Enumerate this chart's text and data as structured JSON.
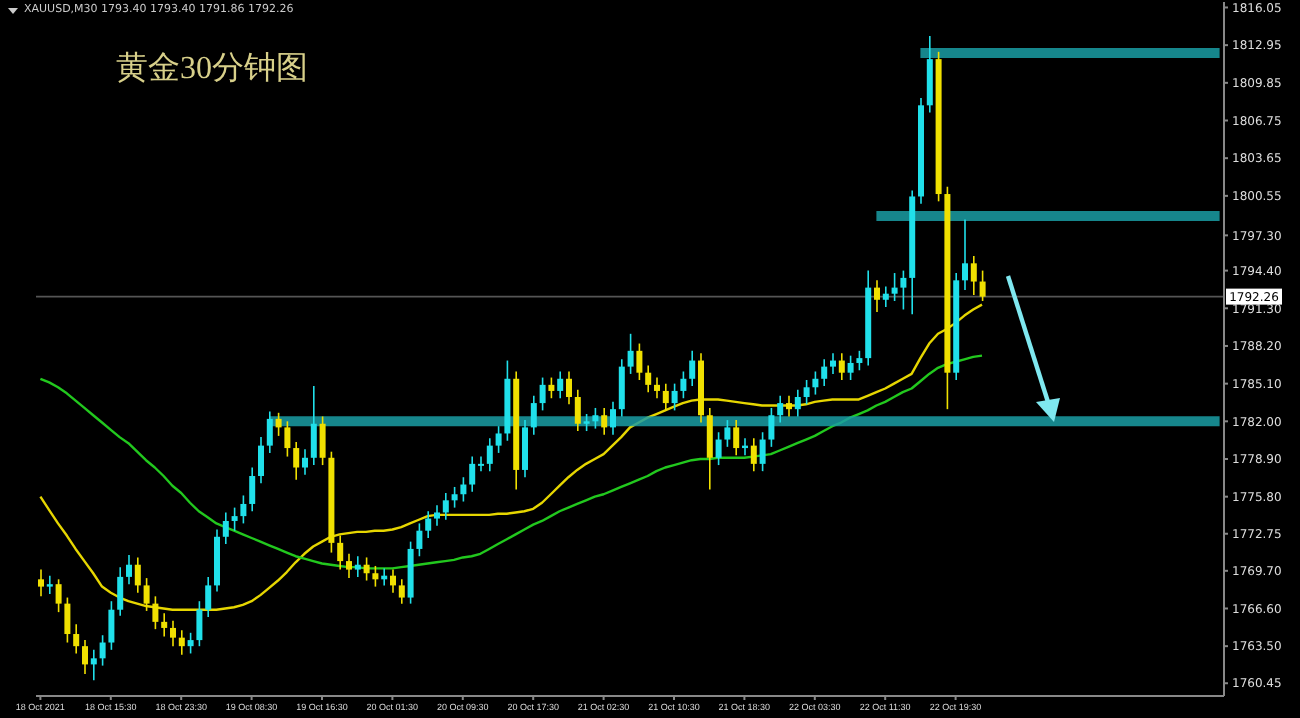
{
  "chart_data": {
    "type": "candlestick",
    "title": "黄金30分钟图",
    "annotations": [
      "XAUUSD,M30 1793.40 1793.40 1791.86 1792.26"
    ],
    "categories": [
      "18 Oct 2021",
      null,
      null,
      null,
      null,
      null,
      null,
      null,
      "18 Oct 15:30",
      null,
      null,
      null,
      null,
      null,
      null,
      null,
      "18 Oct 23:30",
      null,
      null,
      null,
      null,
      null,
      null,
      null,
      "19 Oct 08:30",
      null,
      null,
      null,
      null,
      null,
      null,
      null,
      "19 Oct 16:30",
      null,
      null,
      null,
      null,
      null,
      null,
      null,
      "20 Oct 01:30",
      null,
      null,
      null,
      null,
      null,
      null,
      null,
      "20 Oct 09:30",
      null,
      null,
      null,
      null,
      null,
      null,
      null,
      "20 Oct 17:30",
      null,
      null,
      null,
      null,
      null,
      null,
      null,
      "21 Oct 02:30",
      null,
      null,
      null,
      null,
      null,
      null,
      null,
      "21 Oct 10:30",
      null,
      null,
      null,
      null,
      null,
      null,
      null,
      "21 Oct 18:30",
      null,
      null,
      null,
      null,
      null,
      null,
      null,
      "22 Oct 03:30",
      null,
      null,
      null,
      null,
      null,
      null,
      null,
      "22 Oct 11:30",
      null,
      null,
      null,
      null,
      null,
      null,
      null,
      "22 Oct 19:30",
      null,
      null,
      null,
      null,
      null,
      null,
      null,
      null,
      null,
      null,
      null,
      null,
      null,
      null,
      null,
      null,
      null,
      null,
      null,
      null,
      null,
      null,
      null,
      null,
      null,
      null,
      null,
      null,
      null,
      null
    ],
    "ohlc": [
      [
        1769.0,
        1769.8,
        1767.6,
        1768.4
      ],
      [
        1768.4,
        1769.3,
        1767.8,
        1768.6
      ],
      [
        1768.6,
        1769.0,
        1766.3,
        1767.0
      ],
      [
        1767.0,
        1767.5,
        1763.8,
        1764.5
      ],
      [
        1764.5,
        1765.3,
        1762.9,
        1763.5
      ],
      [
        1763.5,
        1764.0,
        1761.2,
        1762.0
      ],
      [
        1762.0,
        1763.2,
        1760.7,
        1762.5
      ],
      [
        1762.5,
        1764.4,
        1761.9,
        1763.8
      ],
      [
        1763.8,
        1767.2,
        1763.2,
        1766.5
      ],
      [
        1766.5,
        1770.0,
        1766.0,
        1769.2
      ],
      [
        1769.2,
        1771.0,
        1768.6,
        1770.2
      ],
      [
        1770.2,
        1770.8,
        1767.9,
        1768.5
      ],
      [
        1768.5,
        1769.1,
        1766.4,
        1767.0
      ],
      [
        1767.0,
        1767.6,
        1764.9,
        1765.5
      ],
      [
        1765.5,
        1766.2,
        1764.3,
        1765.0
      ],
      [
        1765.0,
        1765.6,
        1763.5,
        1764.2
      ],
      [
        1764.2,
        1764.8,
        1762.8,
        1763.5
      ],
      [
        1763.5,
        1764.6,
        1762.9,
        1764.0
      ],
      [
        1764.0,
        1767.2,
        1763.5,
        1766.5
      ],
      [
        1766.5,
        1769.2,
        1765.9,
        1768.5
      ],
      [
        1768.5,
        1773.1,
        1768.0,
        1772.5
      ],
      [
        1772.5,
        1774.5,
        1771.9,
        1773.8
      ],
      [
        1773.8,
        1774.9,
        1773.0,
        1774.2
      ],
      [
        1774.2,
        1775.9,
        1773.6,
        1775.2
      ],
      [
        1775.2,
        1778.2,
        1774.6,
        1777.5
      ],
      [
        1777.5,
        1780.7,
        1776.9,
        1780.0
      ],
      [
        1780.0,
        1782.8,
        1779.4,
        1782.2
      ],
      [
        1782.2,
        1782.7,
        1780.8,
        1781.5
      ],
      [
        1781.5,
        1782.0,
        1779.1,
        1779.8
      ],
      [
        1779.8,
        1780.3,
        1777.2,
        1778.2
      ],
      [
        1778.2,
        1779.7,
        1777.6,
        1779.0
      ],
      [
        1779.0,
        1784.9,
        1778.4,
        1781.8
      ],
      [
        1781.8,
        1782.4,
        1778.4,
        1779.0
      ],
      [
        1779.0,
        1779.5,
        1771.2,
        1772.0
      ],
      [
        1772.0,
        1772.6,
        1769.8,
        1770.5
      ],
      [
        1770.5,
        1771.1,
        1769.1,
        1769.8
      ],
      [
        1769.8,
        1770.9,
        1769.2,
        1770.2
      ],
      [
        1770.2,
        1770.8,
        1768.9,
        1769.5
      ],
      [
        1769.5,
        1770.1,
        1768.4,
        1769.0
      ],
      [
        1769.0,
        1769.9,
        1768.5,
        1769.3
      ],
      [
        1769.3,
        1769.8,
        1767.9,
        1768.5
      ],
      [
        1768.5,
        1769.0,
        1767.0,
        1767.5
      ],
      [
        1767.5,
        1772.1,
        1767.0,
        1771.5
      ],
      [
        1771.5,
        1773.6,
        1770.9,
        1773.0
      ],
      [
        1773.0,
        1774.6,
        1772.4,
        1774.0
      ],
      [
        1774.0,
        1775.1,
        1773.4,
        1774.5
      ],
      [
        1774.5,
        1776.1,
        1773.9,
        1775.5
      ],
      [
        1775.5,
        1776.6,
        1774.9,
        1776.0
      ],
      [
        1776.0,
        1777.4,
        1775.4,
        1776.8
      ],
      [
        1776.8,
        1779.1,
        1776.2,
        1778.5
      ],
      [
        1778.5,
        1779.1,
        1777.9,
        1778.5
      ],
      [
        1778.5,
        1780.6,
        1777.9,
        1780.0
      ],
      [
        1780.0,
        1781.6,
        1779.4,
        1781.0
      ],
      [
        1781.0,
        1787.0,
        1780.4,
        1785.5
      ],
      [
        1785.5,
        1786.1,
        1776.4,
        1778.0
      ],
      [
        1778.0,
        1782.1,
        1777.4,
        1781.5
      ],
      [
        1781.5,
        1784.1,
        1780.9,
        1783.5
      ],
      [
        1783.5,
        1785.6,
        1782.9,
        1785.0
      ],
      [
        1785.0,
        1785.6,
        1783.9,
        1784.5
      ],
      [
        1784.5,
        1786.1,
        1783.9,
        1785.5
      ],
      [
        1785.5,
        1786.1,
        1783.4,
        1784.0
      ],
      [
        1784.0,
        1784.6,
        1781.2,
        1781.8
      ],
      [
        1781.8,
        1782.6,
        1781.2,
        1782.0
      ],
      [
        1782.0,
        1783.1,
        1781.4,
        1782.5
      ],
      [
        1782.5,
        1783.1,
        1780.9,
        1781.5
      ],
      [
        1781.5,
        1783.6,
        1780.9,
        1783.0
      ],
      [
        1783.0,
        1787.1,
        1782.4,
        1786.5
      ],
      [
        1786.5,
        1789.2,
        1785.9,
        1787.8
      ],
      [
        1787.8,
        1788.4,
        1785.4,
        1786.0
      ],
      [
        1786.0,
        1786.6,
        1784.4,
        1785.0
      ],
      [
        1785.0,
        1785.6,
        1783.9,
        1784.5
      ],
      [
        1784.5,
        1785.1,
        1782.9,
        1783.5
      ],
      [
        1783.5,
        1785.1,
        1782.9,
        1784.5
      ],
      [
        1784.5,
        1786.1,
        1783.9,
        1785.5
      ],
      [
        1785.5,
        1787.8,
        1784.9,
        1787.0
      ],
      [
        1787.0,
        1787.6,
        1781.9,
        1782.5
      ],
      [
        1782.5,
        1783.1,
        1776.4,
        1779.0
      ],
      [
        1779.0,
        1781.1,
        1778.4,
        1780.5
      ],
      [
        1780.5,
        1782.1,
        1779.9,
        1781.5
      ],
      [
        1781.5,
        1782.1,
        1779.2,
        1779.8
      ],
      [
        1779.8,
        1780.6,
        1779.2,
        1780.0
      ],
      [
        1780.0,
        1780.6,
        1777.9,
        1778.5
      ],
      [
        1778.5,
        1781.1,
        1777.9,
        1780.5
      ],
      [
        1780.5,
        1783.1,
        1779.9,
        1782.5
      ],
      [
        1782.5,
        1784.1,
        1781.9,
        1783.5
      ],
      [
        1783.5,
        1784.1,
        1782.4,
        1783.0
      ],
      [
        1783.0,
        1784.6,
        1782.4,
        1784.0
      ],
      [
        1784.0,
        1785.4,
        1783.4,
        1784.8
      ],
      [
        1784.8,
        1786.1,
        1784.2,
        1785.5
      ],
      [
        1785.5,
        1787.1,
        1784.9,
        1786.5
      ],
      [
        1786.5,
        1787.6,
        1785.9,
        1787.0
      ],
      [
        1787.0,
        1787.6,
        1785.4,
        1786.0
      ],
      [
        1786.0,
        1787.4,
        1785.4,
        1786.8
      ],
      [
        1786.8,
        1787.8,
        1786.2,
        1787.2
      ],
      [
        1787.2,
        1794.4,
        1786.6,
        1793.0
      ],
      [
        1793.0,
        1793.6,
        1791.0,
        1792.0
      ],
      [
        1792.0,
        1793.1,
        1791.4,
        1792.5
      ],
      [
        1792.5,
        1794.2,
        1791.9,
        1793.0
      ],
      [
        1793.0,
        1794.4,
        1791.2,
        1793.8
      ],
      [
        1793.8,
        1801.0,
        1790.8,
        1800.5
      ],
      [
        1800.5,
        1808.6,
        1799.9,
        1808.0
      ],
      [
        1808.0,
        1813.7,
        1807.4,
        1811.8
      ],
      [
        1811.8,
        1812.4,
        1800.1,
        1800.7
      ],
      [
        1800.7,
        1801.3,
        1783.0,
        1786.0
      ],
      [
        1786.0,
        1794.2,
        1785.4,
        1793.6
      ],
      [
        1793.6,
        1798.6,
        1792.8,
        1795.0
      ],
      [
        1795.0,
        1795.6,
        1792.4,
        1793.5
      ],
      [
        1793.5,
        1794.4,
        1791.9,
        1792.26
      ],
      null,
      null,
      null,
      null,
      null,
      null,
      null,
      null,
      null,
      null,
      null,
      null,
      null,
      null,
      null,
      null,
      null,
      null,
      null,
      null,
      null,
      null,
      null,
      null,
      null,
      null,
      null
    ],
    "colors": [
      "#f0e000",
      "#20e0ea",
      "#f0e000",
      "#f0e000",
      "#f0e000",
      "#f0e000",
      "#20e0ea",
      "#20e0ea",
      "#20e0ea",
      "#20e0ea",
      "#20e0ea",
      "#f0e000",
      "#f0e000",
      "#f0e000",
      "#f0e000",
      "#f0e000",
      "#f0e000",
      "#20e0ea",
      "#20e0ea",
      "#20e0ea",
      "#20e0ea",
      "#20e0ea",
      "#20e0ea",
      "#20e0ea",
      "#20e0ea",
      "#20e0ea",
      "#20e0ea",
      "#f0e000",
      "#f0e000",
      "#f0e000",
      "#20e0ea",
      "#20e0ea",
      "#f0e000",
      "#f0e000",
      "#f0e000",
      "#f0e000",
      "#20e0ea",
      "#f0e000",
      "#f0e000",
      "#20e0ea",
      "#f0e000",
      "#f0e000",
      "#20e0ea",
      "#20e0ea",
      "#20e0ea",
      "#20e0ea",
      "#20e0ea",
      "#20e0ea",
      "#20e0ea",
      "#20e0ea",
      "#20e0ea",
      "#20e0ea",
      "#20e0ea",
      "#20e0ea",
      "#f0e000",
      "#20e0ea",
      "#20e0ea",
      "#20e0ea",
      "#f0e000",
      "#20e0ea",
      "#f0e000",
      "#f0e000",
      "#20e0ea",
      "#20e0ea",
      "#f0e000",
      "#20e0ea",
      "#20e0ea",
      "#20e0ea",
      "#f0e000",
      "#f0e000",
      "#f0e000",
      "#f0e000",
      "#20e0ea",
      "#20e0ea",
      "#20e0ea",
      "#f0e000",
      "#f0e000",
      "#20e0ea",
      "#20e0ea",
      "#f0e000",
      "#20e0ea",
      "#f0e000",
      "#20e0ea",
      "#20e0ea",
      "#20e0ea",
      "#f0e000",
      "#20e0ea",
      "#20e0ea",
      "#20e0ea",
      "#20e0ea",
      "#20e0ea",
      "#f0e000",
      "#20e0ea",
      "#20e0ea",
      "#20e0ea",
      "#f0e000",
      "#20e0ea",
      "#20e0ea",
      "#20e0ea",
      "#20e0ea",
      "#20e0ea",
      "#20e0ea",
      "#f0e000",
      "#f0e000",
      "#20e0ea",
      "#20e0ea",
      "#f0e000",
      "#f0e000",
      null,
      null,
      null,
      null,
      null,
      null,
      null,
      null,
      null,
      null,
      null,
      null,
      null,
      null,
      null,
      null,
      null,
      null,
      null,
      null,
      null,
      null,
      null,
      null,
      null,
      null,
      null
    ],
    "series": [
      {
        "type": "line",
        "color": "#e6d600",
        "values": [
          1775.8,
          1774.7,
          1773.6,
          1772.6,
          1771.5,
          1770.5,
          1769.5,
          1768.4,
          1767.9,
          1767.5,
          1767.2,
          1767.0,
          1766.8,
          1766.7,
          1766.6,
          1766.5,
          1766.5,
          1766.5,
          1766.5,
          1766.5,
          1766.5,
          1766.6,
          1766.7,
          1766.9,
          1767.2,
          1767.7,
          1768.3,
          1768.9,
          1769.6,
          1770.4,
          1771.1,
          1771.7,
          1772.1,
          1772.5,
          1772.7,
          1772.8,
          1772.9,
          1772.9,
          1773.0,
          1773.0,
          1773.1,
          1773.3,
          1773.6,
          1773.9,
          1774.2,
          1774.3,
          1774.3,
          1774.3,
          1774.3,
          1774.3,
          1774.3,
          1774.3,
          1774.4,
          1774.4,
          1774.5,
          1774.6,
          1774.8,
          1775.3,
          1776.0,
          1776.7,
          1777.4,
          1778.0,
          1778.5,
          1778.9,
          1779.3,
          1780.0,
          1780.7,
          1781.5,
          1781.9,
          1782.3,
          1782.6,
          1782.9,
          1783.2,
          1783.5,
          1783.7,
          1783.8,
          1783.8,
          1783.8,
          1783.7,
          1783.6,
          1783.5,
          1783.4,
          1783.3,
          1783.3,
          1783.3,
          1783.3,
          1783.3,
          1783.4,
          1783.6,
          1783.7,
          1783.8,
          1783.8,
          1783.8,
          1783.8,
          1784.1,
          1784.4,
          1784.7,
          1785.1,
          1785.5,
          1785.9,
          1787.2,
          1788.4,
          1789.2,
          1789.6,
          1790.1,
          1790.7,
          1791.2,
          1791.6,
          null,
          null,
          null,
          null,
          null,
          null,
          null,
          null,
          null,
          null,
          null,
          null,
          null,
          null,
          null,
          null,
          null,
          null,
          null,
          null,
          null,
          null,
          null,
          null,
          null,
          null,
          null
        ]
      },
      {
        "type": "line",
        "color": "#22c81e",
        "values": [
          1785.5,
          1785.2,
          1784.8,
          1784.3,
          1783.7,
          1783.1,
          1782.5,
          1781.9,
          1781.3,
          1780.7,
          1780.2,
          1779.5,
          1778.8,
          1778.2,
          1777.5,
          1776.7,
          1776.1,
          1775.3,
          1774.6,
          1774.1,
          1773.6,
          1773.3,
          1773.0,
          1772.7,
          1772.4,
          1772.1,
          1771.8,
          1771.5,
          1771.2,
          1770.9,
          1770.7,
          1770.5,
          1770.3,
          1770.2,
          1770.1,
          1770.0,
          1770.0,
          1769.9,
          1769.9,
          1769.9,
          1769.9,
          1770.0,
          1770.1,
          1770.2,
          1770.3,
          1770.4,
          1770.5,
          1770.6,
          1770.8,
          1770.9,
          1771.1,
          1771.5,
          1771.9,
          1772.3,
          1772.7,
          1773.1,
          1773.5,
          1773.8,
          1774.2,
          1774.6,
          1774.9,
          1775.2,
          1775.5,
          1775.8,
          1776.0,
          1776.3,
          1776.6,
          1776.9,
          1777.2,
          1777.5,
          1777.9,
          1778.2,
          1778.4,
          1778.6,
          1778.8,
          1778.9,
          1778.9,
          1779.0,
          1779.0,
          1779.0,
          1779.0,
          1779.1,
          1779.2,
          1779.3,
          1779.6,
          1779.9,
          1780.2,
          1780.5,
          1780.8,
          1781.2,
          1781.6,
          1781.9,
          1782.3,
          1782.6,
          1782.9,
          1783.3,
          1783.6,
          1784.0,
          1784.4,
          1784.7,
          1785.3,
          1785.9,
          1786.4,
          1786.7,
          1786.9,
          1787.1,
          1787.3,
          1787.4,
          null,
          null,
          null,
          null,
          null,
          null,
          null,
          null,
          null,
          null,
          null,
          null,
          null,
          null,
          null,
          null,
          null,
          null,
          null,
          null,
          null,
          null,
          null,
          null,
          null,
          null,
          null
        ]
      },
      {
        "type": "line",
        "color": "#1a9ea4",
        "values": [
          null,
          null,
          null,
          null,
          null,
          null,
          null,
          null,
          null,
          null,
          null,
          null,
          null,
          null,
          null,
          null,
          null,
          null,
          null,
          null,
          null,
          null,
          null,
          null,
          null,
          null,
          1782.0,
          1782.0,
          1782.0,
          1782.0,
          1782.0,
          1782.0,
          1782.0,
          1782.0,
          1782.0,
          1782.0,
          1782.0,
          1782.0,
          1782.0,
          1782.0,
          1782.0,
          1782.0,
          1782.0,
          1782.0,
          1782.0,
          1782.0,
          1782.0,
          1782.0,
          1782.0,
          1782.0,
          1782.0,
          1782.0,
          1782.0,
          1782.0,
          1782.0,
          1782.0,
          1782.0,
          1782.0,
          1782.0,
          1782.0,
          1782.0,
          1782.0,
          1782.0,
          1782.0,
          1782.0,
          1782.0,
          1782.0,
          1782.0,
          1782.0,
          1782.0,
          1782.0,
          1782.0,
          1782.0,
          1782.0,
          1782.0,
          1782.0,
          1782.0,
          1782.0,
          1782.0,
          1782.0,
          1782.0,
          1782.0,
          1782.0,
          1782.0,
          1782.0,
          1782.0,
          1782.0,
          1782.0,
          1782.0,
          1782.0,
          1782.0,
          1782.0,
          1782.0,
          1782.0,
          1782.0,
          1782.0,
          1782.0,
          1782.0,
          1782.0,
          1782.0,
          1782.0,
          1782.0,
          1782.0,
          1782.0,
          1782.0,
          1782.0,
          1782.0,
          1782.0,
          1782.0,
          1782.0,
          1782.0,
          1782.0,
          1782.0,
          1782.0,
          1782.0,
          1782.0,
          1782.0,
          1782.0,
          1782.0,
          1782.0,
          1782.0,
          1782.0,
          1782.0,
          1782.0,
          1782.0,
          1782.0,
          1782.0,
          1782.0,
          1782.0,
          1782.0,
          1782.0,
          1782.0,
          1782.0,
          1782.0,
          1782.0
        ]
      },
      {
        "type": "line",
        "color": "#1a9ea4",
        "values": [
          null,
          null,
          null,
          null,
          null,
          null,
          null,
          null,
          null,
          null,
          null,
          null,
          null,
          null,
          null,
          null,
          null,
          null,
          null,
          null,
          null,
          null,
          null,
          null,
          null,
          null,
          null,
          null,
          null,
          null,
          null,
          null,
          null,
          null,
          null,
          null,
          null,
          null,
          null,
          null,
          null,
          null,
          null,
          null,
          null,
          null,
          null,
          null,
          null,
          null,
          null,
          null,
          null,
          null,
          null,
          null,
          null,
          null,
          null,
          null,
          null,
          null,
          null,
          null,
          null,
          null,
          null,
          null,
          null,
          null,
          null,
          null,
          null,
          null,
          null,
          null,
          null,
          null,
          null,
          null,
          null,
          null,
          null,
          null,
          null,
          null,
          null,
          null,
          null,
          null,
          null,
          null,
          null,
          null,
          null,
          1798.9,
          1798.9,
          1798.9,
          1798.9,
          1798.9,
          1798.9,
          1798.9,
          1798.9,
          1798.9,
          1798.9,
          1798.9,
          1798.9,
          1798.9,
          1798.9,
          1798.9,
          1798.9,
          1798.9,
          1798.9,
          1798.9,
          1798.9,
          1798.9,
          1798.9,
          1798.9,
          1798.9,
          1798.9,
          1798.9,
          1798.9,
          1798.9,
          1798.9,
          1798.9,
          1798.9,
          1798.9,
          1798.9,
          1798.9,
          1798.9,
          1798.9,
          1798.9,
          1798.9,
          1798.9,
          1798.9
        ]
      },
      {
        "type": "line",
        "color": "#1a9ea4",
        "values": [
          null,
          null,
          null,
          null,
          null,
          null,
          null,
          null,
          null,
          null,
          null,
          null,
          null,
          null,
          null,
          null,
          null,
          null,
          null,
          null,
          null,
          null,
          null,
          null,
          null,
          null,
          null,
          null,
          null,
          null,
          null,
          null,
          null,
          null,
          null,
          null,
          null,
          null,
          null,
          null,
          null,
          null,
          null,
          null,
          null,
          null,
          null,
          null,
          null,
          null,
          null,
          null,
          null,
          null,
          null,
          null,
          null,
          null,
          null,
          null,
          null,
          null,
          null,
          null,
          null,
          null,
          null,
          null,
          null,
          null,
          null,
          null,
          null,
          null,
          null,
          null,
          null,
          null,
          null,
          null,
          null,
          null,
          null,
          null,
          null,
          null,
          null,
          null,
          null,
          null,
          null,
          null,
          null,
          null,
          null,
          null,
          null,
          null,
          null,
          null,
          1812.3,
          1812.3,
          1812.3,
          1812.3,
          1812.3,
          1812.3,
          1812.3,
          1812.3,
          1812.3,
          1812.3,
          1812.3,
          1812.3,
          1812.3,
          1812.3,
          1812.3,
          1812.3,
          1812.3,
          1812.3,
          1812.3,
          1812.3,
          1812.3,
          1812.3,
          1812.3,
          1812.3,
          1812.3,
          1812.3,
          1812.3,
          1812.3,
          1812.3,
          1812.3,
          1812.3,
          1812.3,
          1812.3,
          1812.3,
          1812.3
        ]
      }
    ],
    "ylim": [
      1759.4,
      1816.5
    ],
    "yticks": [
      1816.05,
      1812.95,
      1809.85,
      1806.75,
      1803.65,
      1800.55,
      {
        "value": 1797.3,
        "label": "1797.30"
      },
      {
        "value": 1794.4,
        "label": "1794.40"
      },
      {
        "value": 1791.3,
        "label": "1791.30"
      },
      {
        "value": 1788.2,
        "label": "1788.20"
      },
      {
        "value": 1785.1,
        "label": "1785.10"
      },
      {
        "value": 1782.0,
        "label": "1782.00"
      },
      {
        "value": 1778.9,
        "label": "1778.90"
      },
      {
        "value": 1775.8,
        "label": "1775.80"
      },
      1772.75,
      {
        "value": 1769.7,
        "label": "1769.70"
      },
      {
        "value": 1766.6,
        "label": "1766.60"
      },
      {
        "value": 1763.5,
        "label": "1763.50"
      },
      1760.45
    ],
    "ref_lines": [
      {
        "axis": "y",
        "value": 1792.26,
        "label": "1792.26",
        "color": "#555555"
      }
    ]
  }
}
